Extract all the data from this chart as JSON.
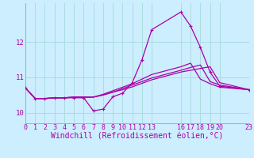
{
  "background_color": "#cceeff",
  "grid_color": "#aadddd",
  "line_color": "#aa00aa",
  "xlabel": "Windchill (Refroidissement éolien,°C)",
  "xlim": [
    0,
    23
  ],
  "ylim": [
    9.7,
    13.1
  ],
  "yticks": [
    10,
    11,
    12
  ],
  "xticks": [
    0,
    1,
    2,
    3,
    4,
    5,
    6,
    7,
    8,
    9,
    10,
    11,
    12,
    13,
    16,
    17,
    18,
    19,
    20,
    23
  ],
  "line1_x": [
    0,
    1,
    2,
    3,
    4,
    5,
    6,
    7,
    8,
    9,
    10,
    11,
    12,
    13,
    16,
    17,
    18,
    19,
    20,
    23
  ],
  "line1_y": [
    10.7,
    10.4,
    10.4,
    10.42,
    10.42,
    10.42,
    10.42,
    10.05,
    10.1,
    10.45,
    10.55,
    10.85,
    11.5,
    12.35,
    12.85,
    12.45,
    11.85,
    11.15,
    10.75,
    10.65
  ],
  "line2_x": [
    0,
    1,
    2,
    3,
    4,
    5,
    6,
    7,
    8,
    9,
    10,
    11,
    12,
    13,
    16,
    17,
    18,
    19,
    20,
    23
  ],
  "line2_y": [
    10.7,
    10.4,
    10.4,
    10.42,
    10.42,
    10.44,
    10.44,
    10.44,
    10.5,
    10.58,
    10.65,
    10.73,
    10.83,
    10.93,
    11.15,
    11.2,
    11.25,
    11.3,
    10.85,
    10.65
  ],
  "line3_x": [
    0,
    1,
    2,
    3,
    4,
    5,
    6,
    7,
    8,
    9,
    10,
    11,
    12,
    13,
    16,
    17,
    18,
    19,
    20,
    23
  ],
  "line3_y": [
    10.7,
    10.4,
    10.4,
    10.42,
    10.42,
    10.44,
    10.44,
    10.44,
    10.5,
    10.58,
    10.68,
    10.78,
    10.88,
    10.98,
    11.2,
    11.28,
    11.35,
    10.88,
    10.78,
    10.65
  ],
  "line4_x": [
    0,
    1,
    2,
    3,
    4,
    5,
    6,
    7,
    8,
    9,
    10,
    11,
    12,
    13,
    16,
    17,
    18,
    19,
    20,
    23
  ],
  "line4_y": [
    10.7,
    10.4,
    10.4,
    10.42,
    10.42,
    10.44,
    10.44,
    10.44,
    10.52,
    10.62,
    10.72,
    10.82,
    10.95,
    11.08,
    11.3,
    11.4,
    10.95,
    10.82,
    10.72,
    10.65
  ],
  "tick_fontsize": 6,
  "xlabel_fontsize": 7,
  "marker": "+"
}
